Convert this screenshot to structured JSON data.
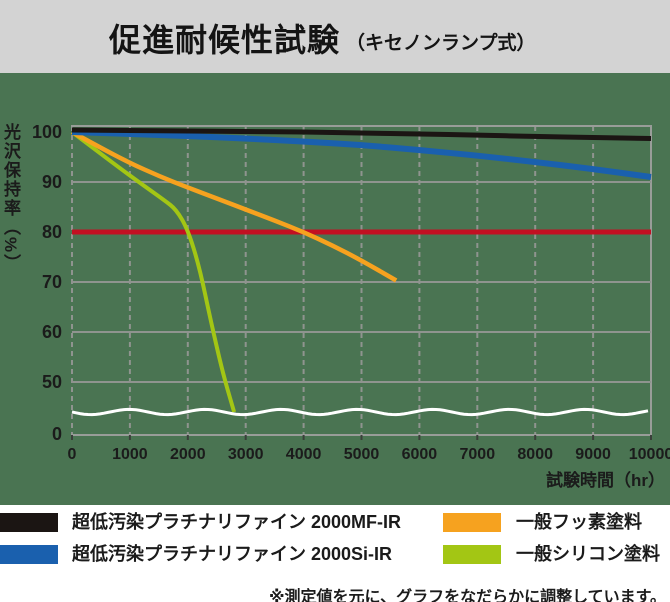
{
  "header": {
    "title": "促進耐候性試験",
    "subtitle": "（キセノンランプ式）"
  },
  "chart_data": {
    "type": "line",
    "title": "促進耐候性試験（キセノンランプ式）",
    "xlabel": "試験時間（hr）",
    "ylabel": "光沢保持率（%）",
    "xlim": [
      0,
      10000
    ],
    "x_ticks": [
      0,
      1000,
      2000,
      3000,
      4000,
      5000,
      6000,
      7000,
      8000,
      9000,
      10000
    ],
    "y_ticks": [
      100,
      90,
      80,
      70,
      60,
      50,
      0
    ],
    "y_axis_break": "wavy white line between 50 and 0",
    "grid": "vertical dashed, horizontal solid",
    "reference_line": {
      "value": 80,
      "color": "#c21022"
    },
    "series": [
      {
        "name": "超低汚染プラチナリファイン 2000MF-IR",
        "color": "#1b1513",
        "width": 5,
        "x": [
          0,
          1000,
          2000,
          3000,
          4000,
          5000,
          6000,
          7000,
          8000,
          9000,
          10000
        ],
        "values": [
          100.4,
          100.3,
          100.2,
          100.1,
          100.0,
          99.8,
          99.6,
          99.4,
          99.1,
          98.9,
          98.7
        ]
      },
      {
        "name": "超低汚染プラチナリファイン 2000Si-IR",
        "color": "#1a60ae",
        "width": 6,
        "x": [
          0,
          1000,
          2000,
          3000,
          4000,
          5000,
          6000,
          7000,
          8000,
          9000,
          10000
        ],
        "values": [
          100,
          99.6,
          99.2,
          98.7,
          98.1,
          97.4,
          96.4,
          95.3,
          94.0,
          92.6,
          91.0
        ]
      },
      {
        "name": "一般フッ素塗料",
        "color": "#f6a21f",
        "width": 4.5,
        "x": [
          0,
          500,
          1000,
          1500,
          2000,
          2500,
          3000,
          3500,
          4000,
          4500,
          5000,
          5600
        ],
        "values": [
          100,
          96.8,
          93.8,
          91.2,
          88.9,
          86.7,
          84.5,
          82.3,
          80.0,
          77.3,
          74.3,
          70.3
        ]
      },
      {
        "name": "一般シリコン塗料",
        "color": "#a3c614",
        "width": 4,
        "x": [
          0,
          400,
          800,
          1200,
          1600,
          1800,
          2000,
          2200,
          2400,
          2600,
          2800
        ],
        "values": [
          100,
          96.5,
          93.0,
          89.6,
          86.3,
          84.5,
          80.5,
          73.0,
          62.0,
          52.0,
          44.0
        ]
      }
    ]
  },
  "legend": {
    "items": [
      {
        "label": "超低汚染プラチナリファイン 2000MF-IR",
        "color": "#1b1513"
      },
      {
        "label": "超低汚染プラチナリファイン 2000Si-IR",
        "color": "#1a60ae"
      },
      {
        "label": "一般フッ素塗料",
        "color": "#f6a21f"
      },
      {
        "label": "一般シリコン塗料",
        "color": "#a3c614"
      }
    ]
  },
  "footnote": "※測定値を元に、グラフをなだらかに調整しています。",
  "colors": {
    "title_band": "#d3d3d3",
    "chart_background": "#4a7452",
    "grid": "#8f948f",
    "frame": "#999d99",
    "reference_line": "#c21022",
    "axis_break_line": "#ffffff",
    "text": "#1b1b1b"
  }
}
